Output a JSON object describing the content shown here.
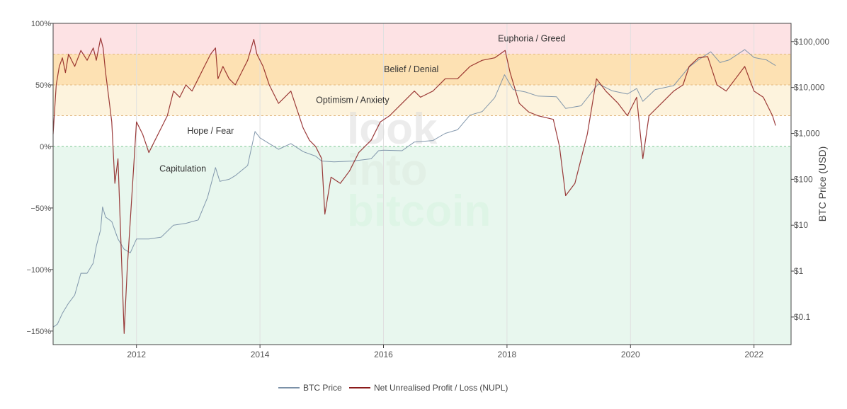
{
  "chart_data": {
    "type": "line",
    "title": "",
    "xlabel": "",
    "ylabel_left": "",
    "ylabel_right": "BTC Price (USD)",
    "x_ticks": [
      "2012",
      "2014",
      "2016",
      "2018",
      "2020",
      "2022"
    ],
    "x_range": [
      2010.65,
      2022.6
    ],
    "y_left": {
      "ticks": [
        "100%",
        "50%",
        "0%",
        "−50%",
        "−100%",
        "−150%"
      ],
      "tick_values": [
        100,
        50,
        0,
        -50,
        -100,
        -150
      ],
      "range": [
        -161,
        100
      ]
    },
    "y_right": {
      "scale": "log",
      "ticks": [
        "$100,000",
        "$10,000",
        "$1,000",
        "$100",
        "$10",
        "$1",
        "$0.1"
      ],
      "tick_values": [
        100000,
        10000,
        1000,
        100,
        10,
        1,
        0.1
      ],
      "range": [
        0.025,
        250000
      ]
    },
    "grid": "vertical lines at year ticks",
    "zones": [
      {
        "label": "Euphoria / Greed",
        "from": 75,
        "to": 100,
        "color": "#fde2e4"
      },
      {
        "label": "Belief / Denial",
        "from": 50,
        "to": 75,
        "color": "#fde1b3"
      },
      {
        "label": "Optimism / Anxiety",
        "from": 25,
        "to": 50,
        "color": "#fdf3dd"
      },
      {
        "label": "Hope / Fear",
        "from": 0,
        "to": 25,
        "color": "#ffffff"
      },
      {
        "label": "Capitulation",
        "from": -161,
        "to": 0,
        "color": "#e8f7ee"
      }
    ],
    "watermark": [
      "look",
      "into",
      "bitcoin"
    ],
    "legend": {
      "placement": "bottom-center"
    },
    "series": [
      {
        "name": "BTC Price",
        "axis": "right",
        "color": "#7b91a8",
        "points": [
          [
            2010.65,
            0.06
          ],
          [
            2010.72,
            0.07
          ],
          [
            2010.8,
            0.12
          ],
          [
            2010.9,
            0.2
          ],
          [
            2011.0,
            0.3
          ],
          [
            2011.1,
            0.9
          ],
          [
            2011.2,
            0.9
          ],
          [
            2011.3,
            1.5
          ],
          [
            2011.35,
            3.5
          ],
          [
            2011.42,
            8
          ],
          [
            2011.45,
            25
          ],
          [
            2011.5,
            15
          ],
          [
            2011.6,
            12
          ],
          [
            2011.7,
            5
          ],
          [
            2011.8,
            3
          ],
          [
            2011.9,
            2.5
          ],
          [
            2012.0,
            5
          ],
          [
            2012.2,
            5
          ],
          [
            2012.4,
            5.5
          ],
          [
            2012.6,
            10
          ],
          [
            2012.8,
            11
          ],
          [
            2013.0,
            13
          ],
          [
            2013.15,
            40
          ],
          [
            2013.28,
            180
          ],
          [
            2013.35,
            90
          ],
          [
            2013.5,
            100
          ],
          [
            2013.6,
            120
          ],
          [
            2013.8,
            200
          ],
          [
            2013.92,
            1100
          ],
          [
            2014.0,
            800
          ],
          [
            2014.15,
            600
          ],
          [
            2014.3,
            450
          ],
          [
            2014.5,
            600
          ],
          [
            2014.7,
            400
          ],
          [
            2014.9,
            320
          ],
          [
            2015.0,
            250
          ],
          [
            2015.2,
            240
          ],
          [
            2015.5,
            250
          ],
          [
            2015.8,
            280
          ],
          [
            2015.92,
            420
          ],
          [
            2016.0,
            430
          ],
          [
            2016.3,
            420
          ],
          [
            2016.5,
            650
          ],
          [
            2016.8,
            700
          ],
          [
            2017.0,
            1000
          ],
          [
            2017.2,
            1200
          ],
          [
            2017.4,
            2500
          ],
          [
            2017.6,
            3000
          ],
          [
            2017.8,
            6000
          ],
          [
            2017.96,
            19000
          ],
          [
            2018.1,
            9000
          ],
          [
            2018.3,
            8000
          ],
          [
            2018.5,
            6500
          ],
          [
            2018.8,
            6300
          ],
          [
            2018.95,
            3500
          ],
          [
            2019.2,
            4000
          ],
          [
            2019.48,
            12000
          ],
          [
            2019.7,
            8500
          ],
          [
            2019.95,
            7200
          ],
          [
            2020.1,
            9500
          ],
          [
            2020.2,
            5000
          ],
          [
            2020.4,
            9000
          ],
          [
            2020.7,
            11000
          ],
          [
            2020.95,
            28000
          ],
          [
            2021.1,
            40000
          ],
          [
            2021.3,
            60000
          ],
          [
            2021.45,
            35000
          ],
          [
            2021.6,
            40000
          ],
          [
            2021.85,
            67000
          ],
          [
            2022.0,
            45000
          ],
          [
            2022.2,
            40000
          ],
          [
            2022.35,
            30000
          ]
        ]
      },
      {
        "name": "Net Unrealised Profit / Loss (NUPL)",
        "axis": "left",
        "color": "#8b1a1a",
        "points": [
          [
            2010.65,
            10
          ],
          [
            2010.7,
            50
          ],
          [
            2010.75,
            65
          ],
          [
            2010.8,
            72
          ],
          [
            2010.85,
            60
          ],
          [
            2010.9,
            75
          ],
          [
            2011.0,
            65
          ],
          [
            2011.1,
            78
          ],
          [
            2011.2,
            70
          ],
          [
            2011.3,
            80
          ],
          [
            2011.35,
            70
          ],
          [
            2011.42,
            88
          ],
          [
            2011.46,
            80
          ],
          [
            2011.5,
            60
          ],
          [
            2011.55,
            40
          ],
          [
            2011.6,
            20
          ],
          [
            2011.65,
            -30
          ],
          [
            2011.7,
            -10
          ],
          [
            2011.75,
            -80
          ],
          [
            2011.8,
            -152
          ],
          [
            2011.85,
            -100
          ],
          [
            2011.9,
            -60
          ],
          [
            2011.95,
            -20
          ],
          [
            2012.0,
            20
          ],
          [
            2012.1,
            10
          ],
          [
            2012.2,
            -5
          ],
          [
            2012.3,
            5
          ],
          [
            2012.4,
            15
          ],
          [
            2012.5,
            25
          ],
          [
            2012.6,
            45
          ],
          [
            2012.7,
            40
          ],
          [
            2012.8,
            50
          ],
          [
            2012.9,
            45
          ],
          [
            2013.0,
            55
          ],
          [
            2013.1,
            65
          ],
          [
            2013.2,
            75
          ],
          [
            2013.28,
            80
          ],
          [
            2013.32,
            55
          ],
          [
            2013.4,
            65
          ],
          [
            2013.5,
            55
          ],
          [
            2013.6,
            50
          ],
          [
            2013.7,
            60
          ],
          [
            2013.8,
            70
          ],
          [
            2013.9,
            87
          ],
          [
            2013.95,
            75
          ],
          [
            2014.05,
            65
          ],
          [
            2014.15,
            50
          ],
          [
            2014.3,
            35
          ],
          [
            2014.4,
            40
          ],
          [
            2014.5,
            45
          ],
          [
            2014.6,
            30
          ],
          [
            2014.7,
            15
          ],
          [
            2014.8,
            5
          ],
          [
            2014.9,
            0
          ],
          [
            2015.0,
            -10
          ],
          [
            2015.05,
            -55
          ],
          [
            2015.15,
            -25
          ],
          [
            2015.3,
            -30
          ],
          [
            2015.45,
            -20
          ],
          [
            2015.6,
            -5
          ],
          [
            2015.8,
            5
          ],
          [
            2015.95,
            20
          ],
          [
            2016.1,
            25
          ],
          [
            2016.3,
            35
          ],
          [
            2016.5,
            45
          ],
          [
            2016.6,
            40
          ],
          [
            2016.8,
            45
          ],
          [
            2017.0,
            55
          ],
          [
            2017.2,
            55
          ],
          [
            2017.4,
            65
          ],
          [
            2017.6,
            70
          ],
          [
            2017.8,
            72
          ],
          [
            2017.97,
            78
          ],
          [
            2018.05,
            60
          ],
          [
            2018.2,
            35
          ],
          [
            2018.35,
            28
          ],
          [
            2018.5,
            25
          ],
          [
            2018.75,
            22
          ],
          [
            2018.85,
            0
          ],
          [
            2018.95,
            -40
          ],
          [
            2019.1,
            -30
          ],
          [
            2019.3,
            10
          ],
          [
            2019.45,
            55
          ],
          [
            2019.6,
            45
          ],
          [
            2019.8,
            35
          ],
          [
            2019.95,
            25
          ],
          [
            2020.1,
            40
          ],
          [
            2020.2,
            -10
          ],
          [
            2020.3,
            25
          ],
          [
            2020.5,
            35
          ],
          [
            2020.7,
            45
          ],
          [
            2020.85,
            50
          ],
          [
            2020.95,
            65
          ],
          [
            2021.1,
            72
          ],
          [
            2021.25,
            73
          ],
          [
            2021.4,
            50
          ],
          [
            2021.55,
            45
          ],
          [
            2021.7,
            55
          ],
          [
            2021.85,
            65
          ],
          [
            2022.0,
            45
          ],
          [
            2022.15,
            40
          ],
          [
            2022.3,
            25
          ],
          [
            2022.35,
            17
          ]
        ]
      }
    ]
  }
}
